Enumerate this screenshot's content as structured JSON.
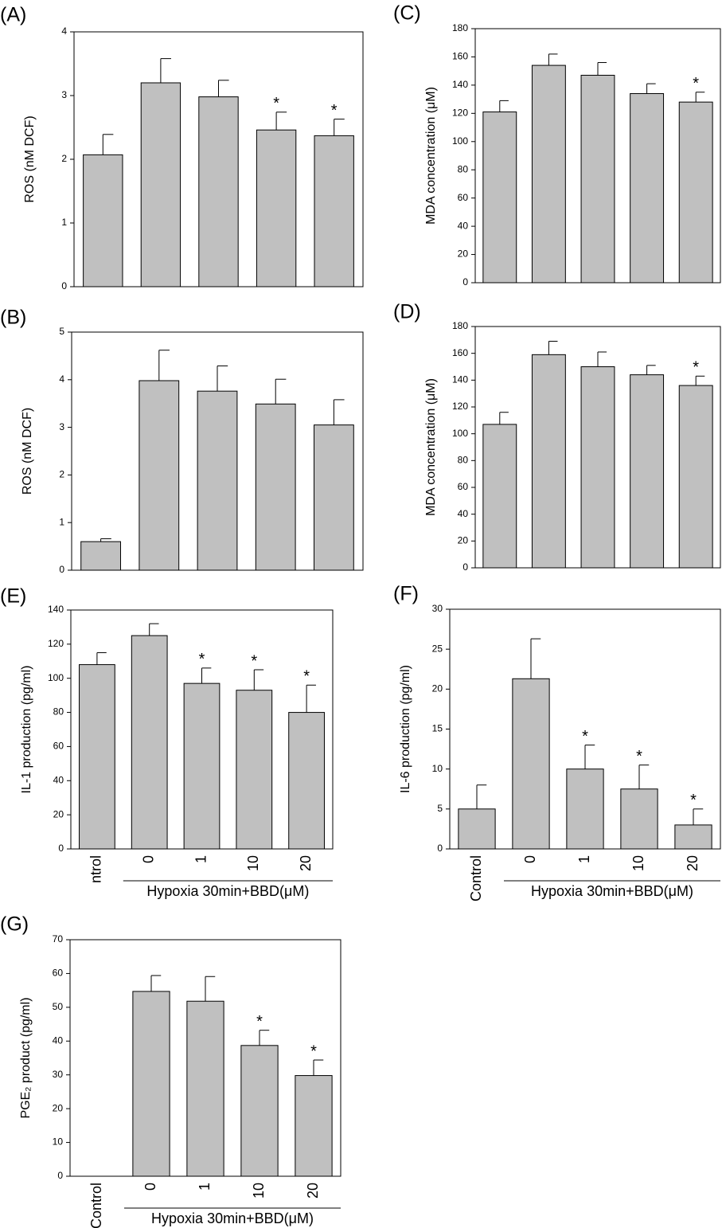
{
  "chart_data": [
    {
      "type": "bar",
      "panel": "(A)",
      "ylabel": "ROS (nM DCF)",
      "values": [
        2.07,
        3.2,
        2.98,
        2.46,
        2.37
      ],
      "errors": [
        0.32,
        0.38,
        0.26,
        0.28,
        0.26
      ],
      "significance": [
        null,
        null,
        null,
        "*",
        "*"
      ],
      "color": "#c0c0c0",
      "ylim": [
        0,
        4
      ],
      "yticks": [
        0,
        1,
        2,
        3,
        4
      ]
    },
    {
      "type": "bar",
      "panel": "(C)",
      "ylabel": "MDA concentration (μM)",
      "values": [
        121,
        154,
        147,
        134,
        128
      ],
      "errors": [
        8,
        8,
        9,
        7,
        7
      ],
      "significance": [
        null,
        null,
        null,
        null,
        "*"
      ],
      "color": "#c0c0c0",
      "ylim": [
        0,
        180
      ],
      "yticks": [
        0,
        20,
        40,
        60,
        80,
        100,
        120,
        140,
        160,
        180
      ]
    },
    {
      "type": "bar",
      "panel": "(B)",
      "ylabel": "ROS (nM DCF)",
      "values": [
        0.6,
        3.98,
        3.76,
        3.49,
        3.05
      ],
      "errors": [
        0.06,
        0.64,
        0.53,
        0.52,
        0.53
      ],
      "color": "#c0c0c0",
      "ylim": [
        0,
        5
      ],
      "yticks": [
        0,
        1,
        2,
        3,
        4,
        5
      ]
    },
    {
      "type": "bar",
      "panel": "(D)",
      "ylabel": "MDA concentration (μM)",
      "values": [
        107,
        159,
        150,
        144,
        136
      ],
      "errors": [
        9,
        10,
        11,
        7,
        7
      ],
      "significance": [
        null,
        null,
        null,
        null,
        "*"
      ],
      "color": "#c0c0c0",
      "ylim": [
        0,
        180
      ],
      "yticks": [
        0,
        20,
        40,
        60,
        80,
        100,
        120,
        140,
        160,
        180
      ]
    },
    {
      "type": "bar",
      "panel": "(E)",
      "ylabel": "IL-1 production (pg/ml)",
      "categories": [
        "ntrol",
        "0",
        "1",
        "10",
        "20"
      ],
      "group_label": "Hypoxia 30min+BBD(μM)",
      "values": [
        108,
        125,
        97,
        93,
        80
      ],
      "errors": [
        7,
        7,
        9,
        12,
        16
      ],
      "significance": [
        null,
        null,
        "*",
        "*",
        "*"
      ],
      "color": "#c0c0c0",
      "ylim": [
        0,
        140
      ],
      "yticks": [
        0,
        20,
        40,
        60,
        80,
        100,
        120,
        140
      ]
    },
    {
      "type": "bar",
      "panel": "(F)",
      "ylabel": "IL-6 production (pg/ml)",
      "categories": [
        "Control",
        "0",
        "1",
        "10",
        "20"
      ],
      "group_label": "Hypoxia 30min+BBD(μM)",
      "values": [
        5,
        21.3,
        10,
        7.5,
        3
      ],
      "errors": [
        3,
        5,
        3,
        3,
        2
      ],
      "significance": [
        null,
        null,
        "*",
        "*",
        "*"
      ],
      "color": "#c0c0c0",
      "ylim": [
        0,
        30
      ],
      "yticks": [
        0,
        5,
        10,
        15,
        20,
        25,
        30
      ]
    },
    {
      "type": "bar",
      "panel": "(G)",
      "ylabel": "PGE₂ product (pg/ml)",
      "categories": [
        "Control",
        "0",
        "1",
        "10",
        "20"
      ],
      "group_label": "Hypoxia 30min+BBD(μM)",
      "values": [
        null,
        54.7,
        51.8,
        38.7,
        29.8
      ],
      "errors": [
        null,
        4.7,
        7.3,
        4.5,
        4.6
      ],
      "significance": [
        null,
        null,
        null,
        "*",
        "*"
      ],
      "color": "#c0c0c0",
      "ylim": [
        0,
        70
      ],
      "yticks": [
        0,
        10,
        20,
        30,
        40,
        50,
        60,
        70
      ]
    }
  ]
}
